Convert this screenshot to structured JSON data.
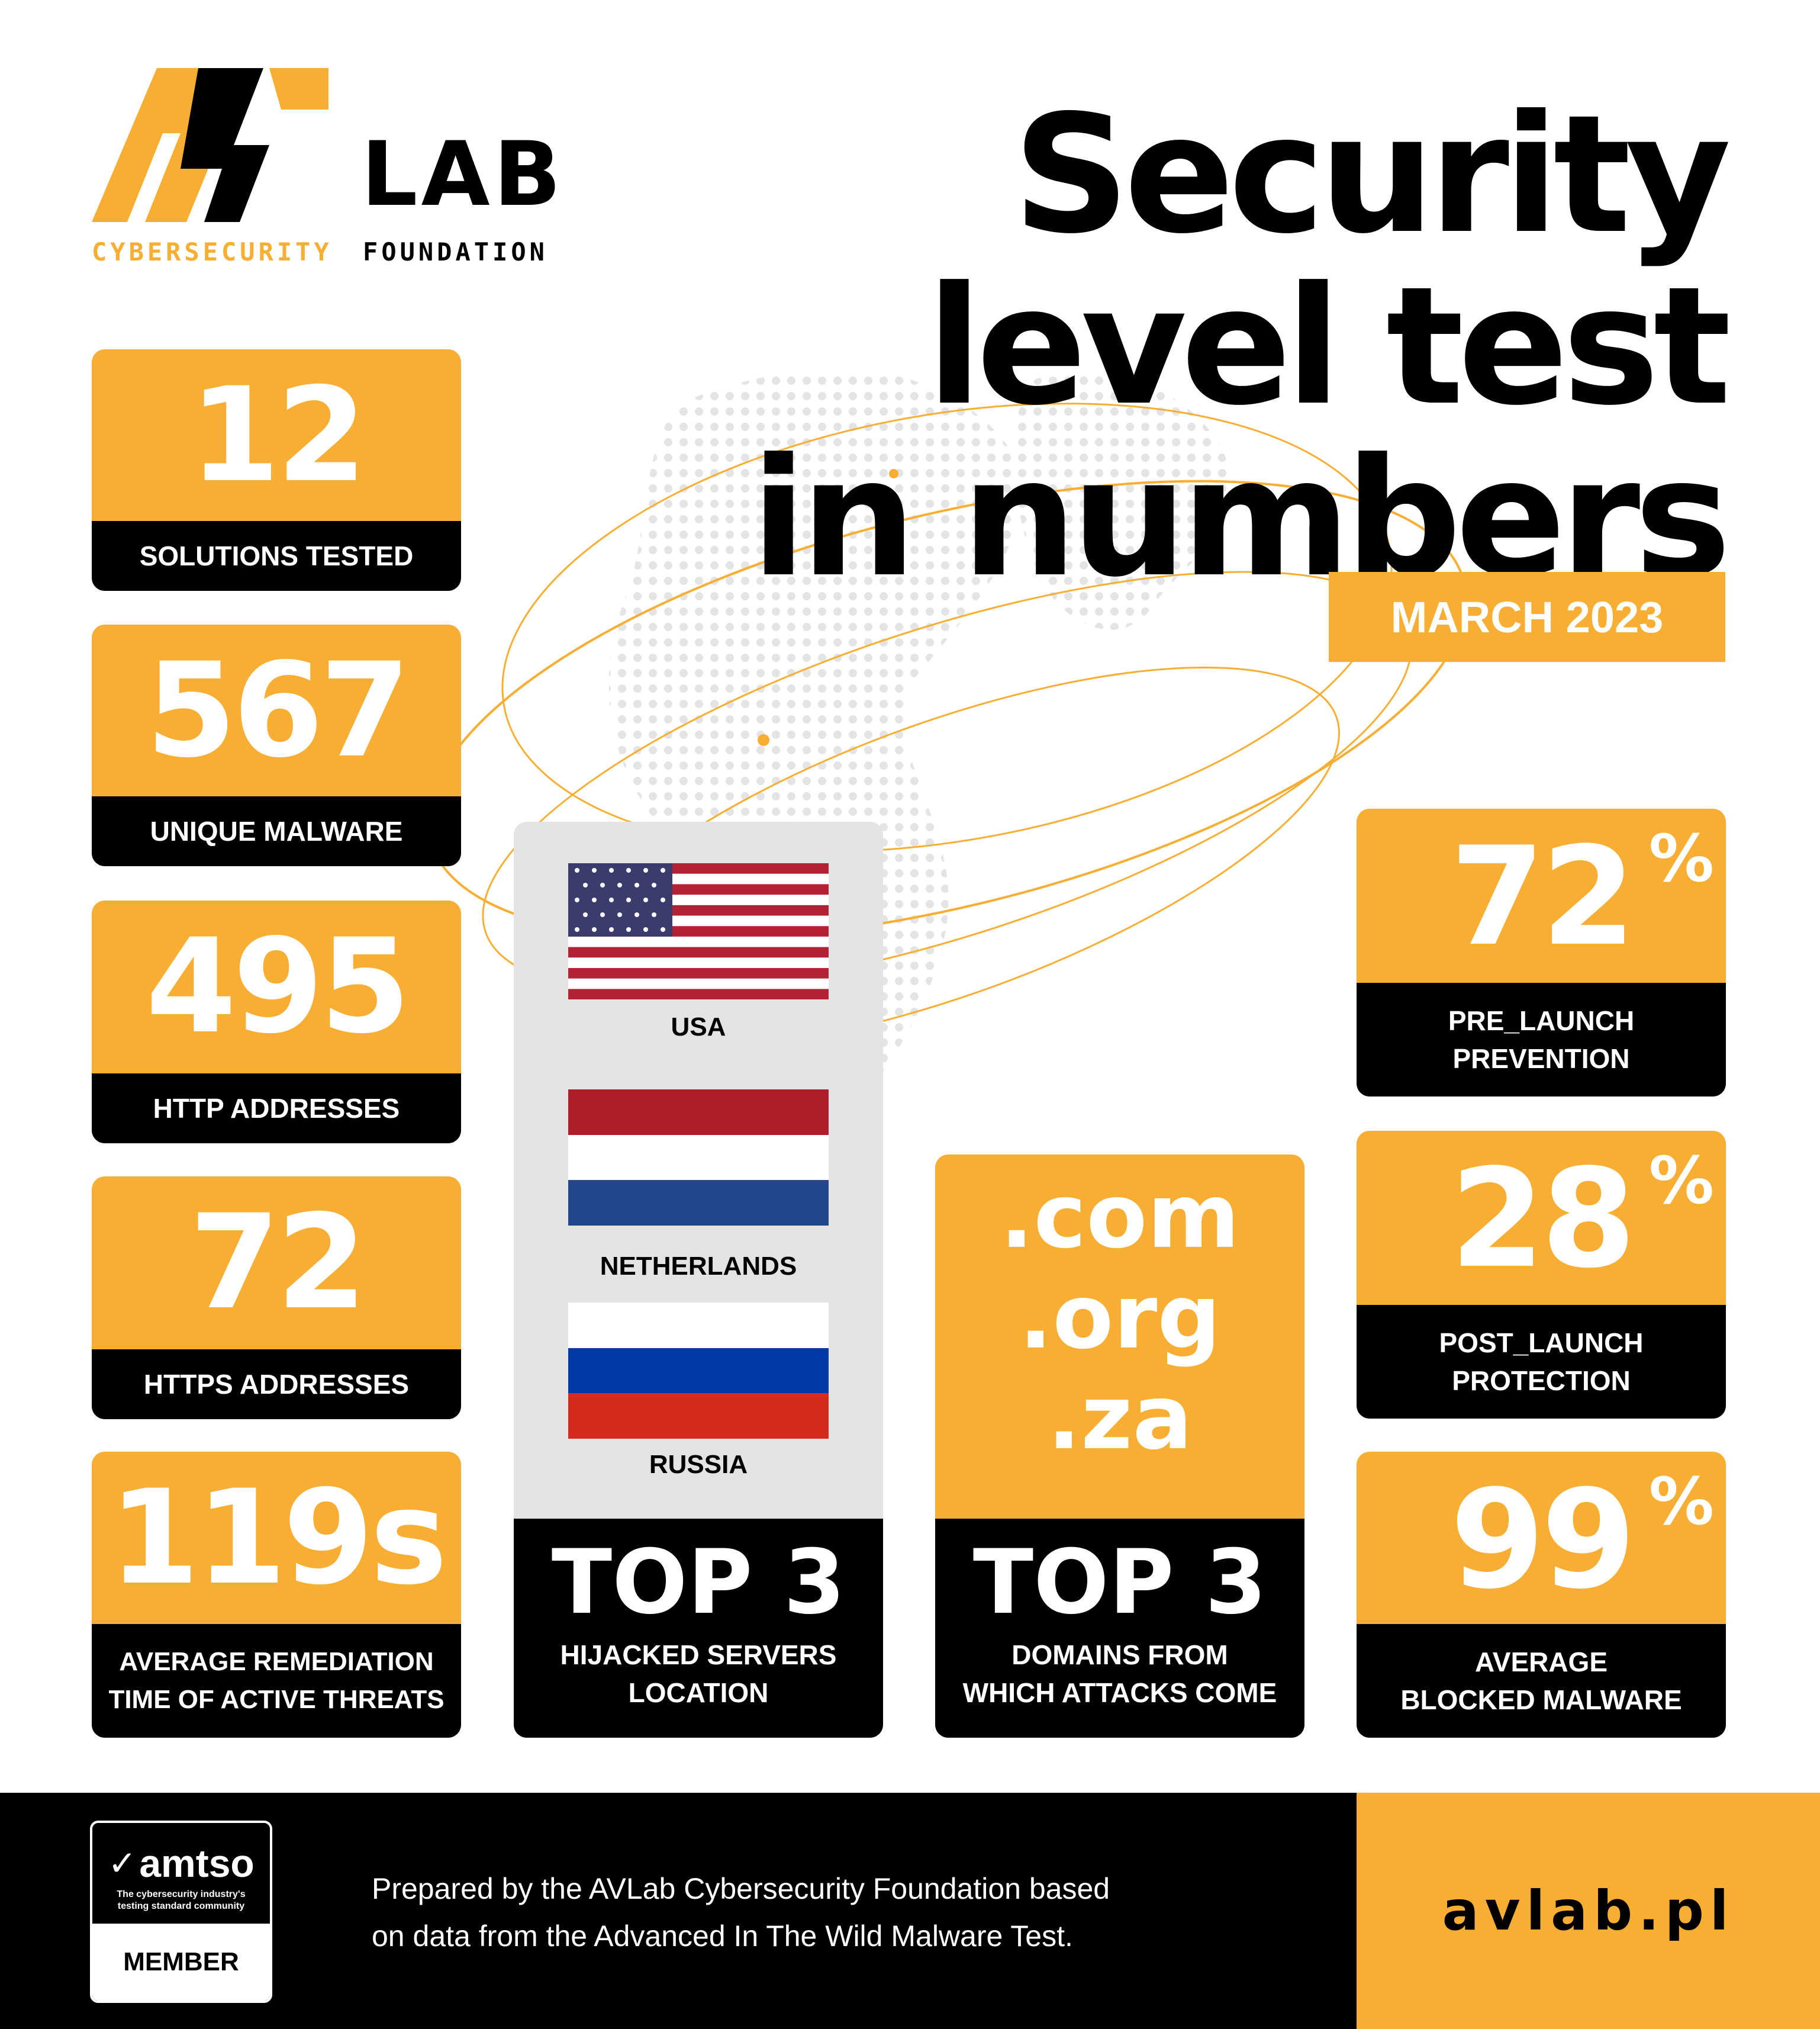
{
  "logo": {
    "mark": "AV",
    "lab": "LAB",
    "sub_cyber": "CYBERSECURITY",
    "sub_foundation": "FOUNDATION"
  },
  "title": {
    "line1": "Security",
    "line2": "level test",
    "line3": "in numbers",
    "date": "MARCH 2023"
  },
  "left_stats": [
    {
      "value": "12",
      "label": "SOLUTIONS TESTED"
    },
    {
      "value": "567",
      "label": "UNIQUE MALWARE"
    },
    {
      "value": "495",
      "label": "HTTP ADDRESSES"
    },
    {
      "value": "72",
      "label": "HTTPS ADDRESSES"
    },
    {
      "value": "119s",
      "label_l1": "AVERAGE REMEDIATION",
      "label_l2": "TIME OF ACTIVE THREATS"
    }
  ],
  "servers": {
    "countries": [
      "USA",
      "NETHERLANDS",
      "RUSSIA"
    ],
    "top": "TOP 3",
    "label_l1": "HIJACKED SERVERS",
    "label_l2": "LOCATION"
  },
  "domains": {
    "list": [
      ".com",
      ".org",
      ".za"
    ],
    "top": "TOP 3",
    "label_l1": "DOMAINS FROM",
    "label_l2": "WHICH ATTACKS COME"
  },
  "right_stats": [
    {
      "value": "72",
      "pct": "%",
      "label_l1": "PRE_LAUNCH",
      "label_l2": "PREVENTION"
    },
    {
      "value": "28",
      "pct": "%",
      "label_l1": "POST_LAUNCH",
      "label_l2": "PROTECTION"
    },
    {
      "value": "99",
      "pct": "%",
      "label_l1": "AVERAGE",
      "label_l2": "BLOCKED MALWARE"
    }
  ],
  "footer": {
    "amtso_name": "amtso",
    "amtso_tag_l1": "The cybersecurity industry's",
    "amtso_tag_l2": "testing standard community",
    "amtso_member": "MEMBER",
    "note_l1": "Prepared by the AVLab Cybersecurity Foundation based",
    "note_l2": "on data from the Advanced In The Wild Malware Test.",
    "site": "avlab.pl"
  },
  "colors": {
    "accent": "#f7ae33",
    "dark": "#000000",
    "panel": "#e3e3e3"
  }
}
